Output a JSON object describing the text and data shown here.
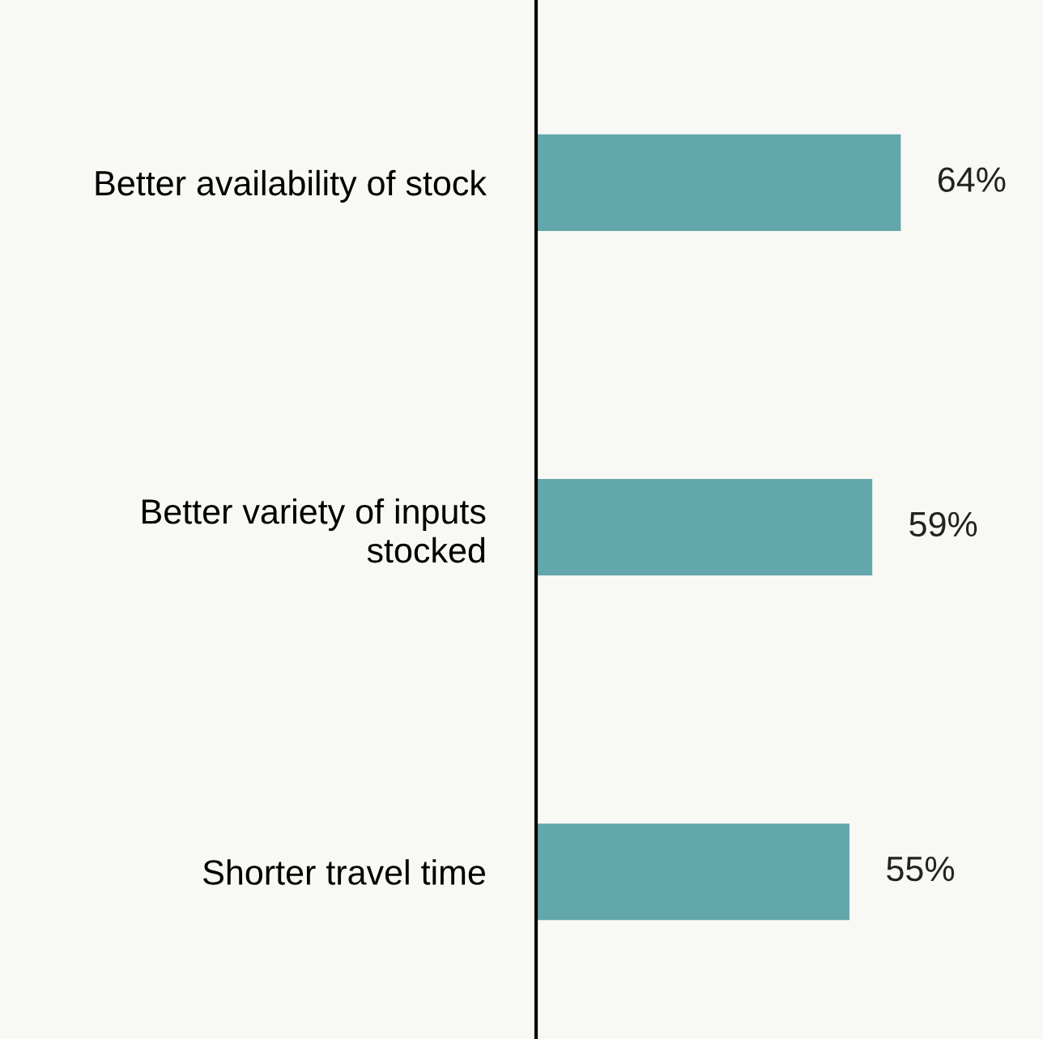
{
  "chart_data": {
    "type": "bar",
    "orientation": "horizontal",
    "categories": [
      "Better availability of stock",
      "Better variety of inputs\nstocked",
      "Shorter travel time"
    ],
    "values": [
      64,
      59,
      55
    ],
    "color": "#62a7ab",
    "value_labels": [
      "64%",
      "59%",
      "55%"
    ],
    "grid": false,
    "legend": false
  }
}
